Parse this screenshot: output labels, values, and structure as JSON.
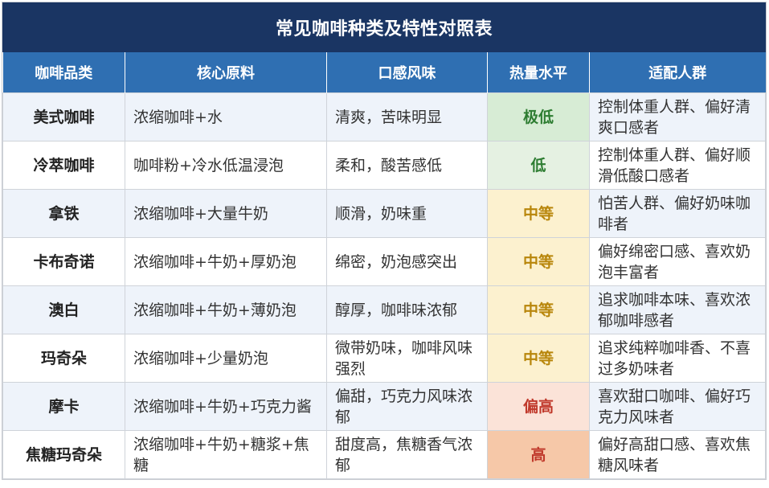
{
  "title": "常见咖啡种类及特性对照表",
  "headers": [
    "咖啡品类",
    "核心原料",
    "口感风味",
    "热量水平",
    "适配人群"
  ],
  "rows": [
    {
      "name": "美式咖啡",
      "ingredients": "浓缩咖啡+水",
      "flavor": "清爽，苦味明显",
      "calorie": "极低",
      "level": "vlow",
      "audience": "控制体重人群、偏好清爽口感者"
    },
    {
      "name": "冷萃咖啡",
      "ingredients": "咖啡粉+冷水低温浸泡",
      "flavor": "柔和，酸苦感低",
      "calorie": "低",
      "level": "low",
      "audience": "控制体重人群、偏好顺滑低酸口感者"
    },
    {
      "name": "拿铁",
      "ingredients": "浓缩咖啡+大量牛奶",
      "flavor": "顺滑，奶味重",
      "calorie": "中等",
      "level": "mid",
      "audience": "怕苦人群、偏好奶味咖啡者"
    },
    {
      "name": "卡布奇诺",
      "ingredients": "浓缩咖啡+牛奶+厚奶泡",
      "flavor": "绵密，奶泡感突出",
      "calorie": "中等",
      "level": "mid",
      "audience": "偏好绵密口感、喜欢奶泡丰富者"
    },
    {
      "name": "澳白",
      "ingredients": "浓缩咖啡+牛奶+薄奶泡",
      "flavor": "醇厚，咖啡味浓郁",
      "calorie": "中等",
      "level": "mid",
      "audience": "追求咖啡本味、喜欢浓郁咖啡感者"
    },
    {
      "name": "玛奇朵",
      "ingredients": "浓缩咖啡+少量奶泡",
      "flavor": "微带奶味，咖啡风味强烈",
      "calorie": "中等",
      "level": "mid",
      "audience": "追求纯粹咖啡香、不喜过多奶味者"
    },
    {
      "name": "摩卡",
      "ingredients": "浓缩咖啡+牛奶+巧克力酱",
      "flavor": "偏甜，巧克力风味浓郁",
      "calorie": "偏高",
      "level": "high",
      "audience": "喜欢甜口咖啡、偏好巧克力风味者"
    },
    {
      "name": "焦糖玛奇朵",
      "ingredients": "浓缩咖啡+牛奶+糖浆+焦糖",
      "flavor": "甜度高，焦糖香气浓郁",
      "calorie": "高",
      "level": "vhigh",
      "audience": "偏好高甜口感、喜欢焦糖风味者"
    }
  ]
}
